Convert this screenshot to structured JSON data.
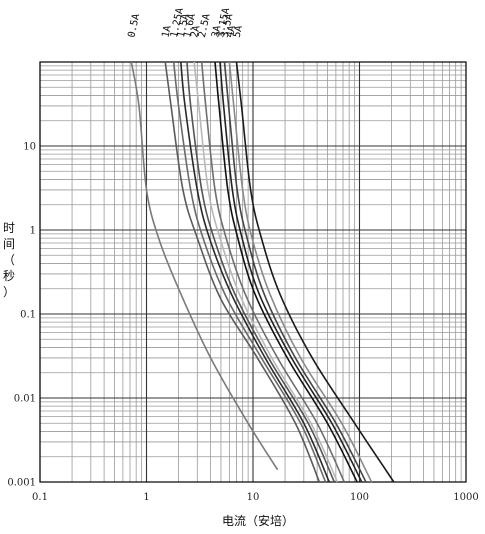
{
  "chart_data": {
    "type": "line",
    "xscale": "log",
    "yscale": "log",
    "xlim": [
      0.1,
      1000
    ],
    "ylim": [
      0.001,
      100
    ],
    "xlabel": "电流（安培）",
    "ylabel": [
      "时",
      "间",
      "（",
      "秒",
      "）"
    ],
    "grid": true,
    "x_ticks": [
      "0.1",
      "1",
      "10",
      "100",
      "1000"
    ],
    "y_ticks": [
      "0.001",
      "0.01",
      "0.1",
      "1",
      "10"
    ],
    "series": [
      {
        "name": "0.5A",
        "color": "#7a7a7a",
        "points": [
          [
            0.72,
            100
          ],
          [
            0.85,
            30
          ],
          [
            1.0,
            3
          ],
          [
            1.3,
            0.8
          ],
          [
            2.0,
            0.2
          ],
          [
            4.0,
            0.03
          ],
          [
            9.0,
            0.005
          ],
          [
            17,
            0.0014
          ]
        ]
      },
      {
        "name": "1A",
        "color": "#5a5a5a",
        "points": [
          [
            1.5,
            100
          ],
          [
            1.7,
            30
          ],
          [
            2.2,
            3
          ],
          [
            3.0,
            0.8
          ],
          [
            5.0,
            0.15
          ],
          [
            11,
            0.03
          ],
          [
            25,
            0.005
          ],
          [
            42,
            0.001
          ]
        ]
      },
      {
        "name": "1.25A",
        "color": "#6a6a6a",
        "points": [
          [
            1.8,
            100
          ],
          [
            2.0,
            30
          ],
          [
            2.6,
            3
          ],
          [
            3.4,
            0.8
          ],
          [
            5.6,
            0.16
          ],
          [
            12,
            0.03
          ],
          [
            28,
            0.005
          ],
          [
            48,
            0.001
          ]
        ]
      },
      {
        "name": "1.5A",
        "color": "#2a2a2a",
        "points": [
          [
            2.1,
            100
          ],
          [
            2.3,
            30
          ],
          [
            3.0,
            3
          ],
          [
            3.9,
            0.8
          ],
          [
            6.3,
            0.17
          ],
          [
            13,
            0.03
          ],
          [
            30,
            0.005
          ],
          [
            52,
            0.001
          ]
        ]
      },
      {
        "name": "1.6A",
        "color": "#555555",
        "points": [
          [
            2.4,
            100
          ],
          [
            2.6,
            30
          ],
          [
            3.3,
            3
          ],
          [
            4.3,
            0.8
          ],
          [
            6.8,
            0.17
          ],
          [
            14,
            0.03
          ],
          [
            33,
            0.005
          ],
          [
            58,
            0.001
          ]
        ]
      },
      {
        "name": "2A",
        "color": "#b8b8b8",
        "points": [
          [
            2.8,
            100
          ],
          [
            3.1,
            30
          ],
          [
            3.8,
            3
          ],
          [
            4.9,
            0.8
          ],
          [
            7.5,
            0.17
          ],
          [
            15,
            0.03
          ],
          [
            35,
            0.005
          ],
          [
            62,
            0.001
          ]
        ]
      },
      {
        "name": "2.5A",
        "color": "#6e6e6e",
        "points": [
          [
            3.3,
            100
          ],
          [
            3.6,
            30
          ],
          [
            4.4,
            3
          ],
          [
            5.6,
            0.8
          ],
          [
            8.5,
            0.17
          ],
          [
            17,
            0.03
          ],
          [
            40,
            0.005
          ],
          [
            72,
            0.001
          ]
        ]
      },
      {
        "name": "3A",
        "color": "#111111",
        "points": [
          [
            4.4,
            100
          ],
          [
            4.8,
            30
          ],
          [
            5.8,
            3
          ],
          [
            7.2,
            0.8
          ],
          [
            10.5,
            0.17
          ],
          [
            21,
            0.03
          ],
          [
            50,
            0.005
          ],
          [
            95,
            0.001
          ]
        ]
      },
      {
        "name": "3.15A",
        "color": "#222222",
        "points": [
          [
            4.9,
            100
          ],
          [
            5.3,
            30
          ],
          [
            6.4,
            3
          ],
          [
            7.9,
            0.8
          ],
          [
            11.5,
            0.17
          ],
          [
            23,
            0.03
          ],
          [
            55,
            0.005
          ],
          [
            105,
            0.001
          ]
        ]
      },
      {
        "name": "3.5A",
        "color": "#444444",
        "points": [
          [
            5.4,
            100
          ],
          [
            5.9,
            30
          ],
          [
            7.1,
            3
          ],
          [
            8.8,
            0.8
          ],
          [
            12.8,
            0.17
          ],
          [
            25,
            0.03
          ],
          [
            60,
            0.005
          ],
          [
            115,
            0.001
          ]
        ]
      },
      {
        "name": "4A",
        "color": "#8a8a8a",
        "points": [
          [
            6.0,
            100
          ],
          [
            6.6,
            30
          ],
          [
            8.0,
            3
          ],
          [
            9.8,
            0.8
          ],
          [
            14.5,
            0.17
          ],
          [
            28,
            0.03
          ],
          [
            68,
            0.005
          ],
          [
            130,
            0.001
          ]
        ]
      },
      {
        "name": "5A",
        "color": "#1a1a1a",
        "points": [
          [
            7.0,
            100
          ],
          [
            7.8,
            30
          ],
          [
            9.5,
            3
          ],
          [
            12,
            0.8
          ],
          [
            18,
            0.17
          ],
          [
            36,
            0.03
          ],
          [
            90,
            0.005
          ],
          [
            210,
            0.001
          ]
        ]
      }
    ]
  }
}
